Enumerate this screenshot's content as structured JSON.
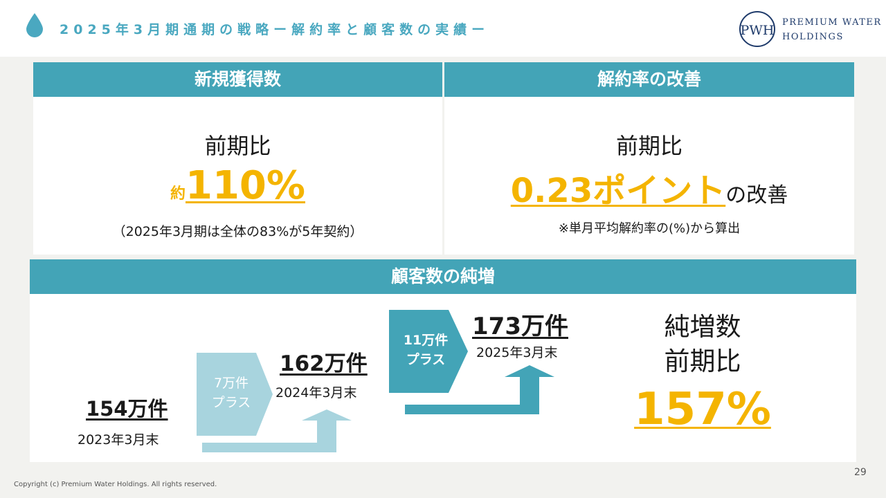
{
  "header": {
    "title": "2025年3月期通期の戦略ー解約率と顧客数の実績ー",
    "brand_line1": "PREMIUM WATER",
    "brand_line2": "HOLDINGS",
    "logo_text": "PWH"
  },
  "acquisition": {
    "heading": "新規獲得数",
    "compare": "前期比",
    "prefix": "約",
    "value": "110%",
    "note": "（2025年3月期は全体の83%が5年契約）"
  },
  "churn": {
    "heading": "解約率の改善",
    "compare": "前期比",
    "value": "0.23ポイント",
    "suffix": "の改善",
    "note": "※単月平均解約率の(%)から算出"
  },
  "customers": {
    "heading": "顧客数の純増",
    "steps": [
      {
        "count": "154万件",
        "date": "2023年3月末"
      },
      {
        "count": "162万件",
        "date": "2024年3月末"
      },
      {
        "count": "173万件",
        "date": "2025年3月末"
      }
    ],
    "increases": [
      {
        "line1": "7万件",
        "line2": "プラス"
      },
      {
        "line1": "11万件",
        "line2": "プラス"
      }
    ],
    "net_label1": "純増数",
    "net_label2": "前期比",
    "net_value": "157%"
  },
  "footer": {
    "copyright": "Copyright (c) Premium Water Holdings. All rights reserved.",
    "page": "29"
  },
  "colors": {
    "accent": "#43a4b7",
    "highlight": "#f4b400",
    "light_teal": "#a8d4de",
    "title": "#4aa8c0"
  }
}
